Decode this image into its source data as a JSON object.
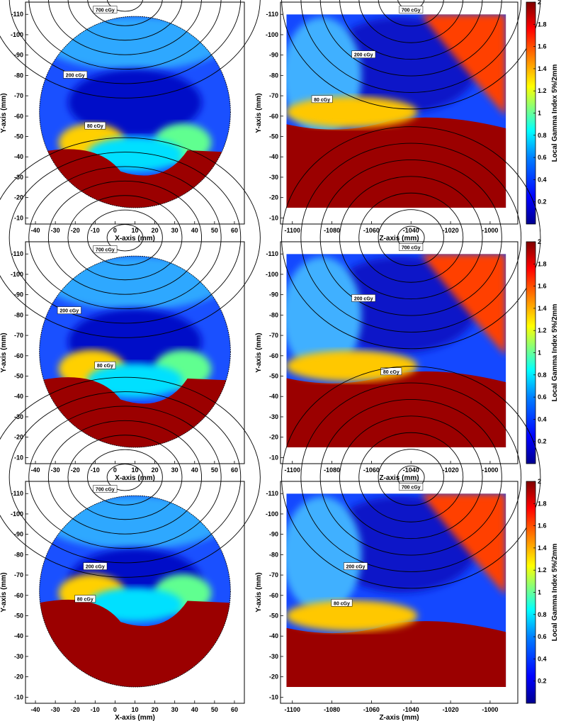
{
  "chart_data": [
    {
      "type": "heatmap",
      "id": "r1-left",
      "xlabel": "X-axis (mm)",
      "ylabel": "Y-axis (mm)",
      "xticks": [
        -40,
        -30,
        -20,
        -10,
        0,
        10,
        20,
        30,
        40,
        50,
        60
      ],
      "yticks": [
        -110,
        -100,
        -90,
        -80,
        -70,
        -60,
        -50,
        -40,
        -30,
        -20,
        -10
      ],
      "xlim": [
        -45,
        65
      ],
      "ylim": [
        -7,
        -116
      ],
      "y_reversed": true,
      "dose_labels": [
        {
          "text": "700 cGy",
          "x": -5,
          "y": -112
        },
        {
          "text": "200 cGy",
          "x": -20,
          "y": -80
        },
        {
          "text": "80 cGy",
          "x": -10,
          "y": -55
        }
      ]
    },
    {
      "type": "heatmap",
      "id": "r1-right",
      "xlabel": "Z-axis (mm)",
      "ylabel": "Y-axis (mm)",
      "xticks": [
        -1100,
        -1080,
        -1060,
        -1040,
        -1020,
        -1000
      ],
      "yticks": [
        -110,
        -100,
        -90,
        -80,
        -70,
        -60,
        -50,
        -40,
        -30,
        -20,
        -10
      ],
      "xlim": [
        -1106,
        -986
      ],
      "ylim": [
        -7,
        -116
      ],
      "y_reversed": true,
      "colorbar": {
        "label": "Local Gamma Index 5%/2mm",
        "range": [
          0,
          2
        ],
        "ticks": [
          0.2,
          0.4,
          0.6,
          0.8,
          1,
          1.2,
          1.4,
          1.6,
          1.8,
          2
        ]
      },
      "dose_labels": [
        {
          "text": "700 cGy",
          "x": -1040,
          "y": -112
        },
        {
          "text": "200 cGy",
          "x": -1064,
          "y": -90
        },
        {
          "text": "80 cGy",
          "x": -1085,
          "y": -68
        }
      ]
    },
    {
      "type": "heatmap",
      "id": "r2-left",
      "xlabel": "X-axis (mm)",
      "ylabel": "Y-axis (mm)",
      "xticks": [
        -40,
        -30,
        -20,
        -10,
        0,
        10,
        20,
        30,
        40,
        50,
        60
      ],
      "yticks": [
        -110,
        -100,
        -90,
        -80,
        -70,
        -60,
        -50,
        -40,
        -30,
        -20,
        -10
      ],
      "xlim": [
        -45,
        65
      ],
      "ylim": [
        -7,
        -116
      ],
      "y_reversed": true,
      "dose_labels": [
        {
          "text": "700 cGy",
          "x": -5,
          "y": -112
        },
        {
          "text": "200 cGy",
          "x": -23,
          "y": -82
        },
        {
          "text": "80 cGy",
          "x": -5,
          "y": -55
        }
      ]
    },
    {
      "type": "heatmap",
      "id": "r2-right",
      "xlabel": "Z-axis (mm)",
      "ylabel": "Y-axis (mm)",
      "xticks": [
        -1100,
        -1080,
        -1060,
        -1040,
        -1020,
        -1000
      ],
      "yticks": [
        -110,
        -100,
        -90,
        -80,
        -70,
        -60,
        -50,
        -40,
        -30,
        -20,
        -10
      ],
      "xlim": [
        -1106,
        -986
      ],
      "ylim": [
        -7,
        -116
      ],
      "y_reversed": true,
      "colorbar": {
        "label": "Local Gamma Index 5%/2mm",
        "range": [
          0,
          2
        ],
        "ticks": [
          0.2,
          0.4,
          0.6,
          0.8,
          1,
          1.2,
          1.4,
          1.6,
          1.8,
          2
        ]
      },
      "dose_labels": [
        {
          "text": "700 cGy",
          "x": -1040,
          "y": -113
        },
        {
          "text": "200 cGy",
          "x": -1064,
          "y": -88
        },
        {
          "text": "80 cGy",
          "x": -1050,
          "y": -52
        }
      ]
    },
    {
      "type": "heatmap",
      "id": "r3-left",
      "xlabel": "X-axis (mm)",
      "ylabel": "Y-axis (mm)",
      "xticks": [
        -40,
        -30,
        -20,
        -10,
        0,
        10,
        20,
        30,
        40,
        50,
        60
      ],
      "yticks": [
        -110,
        -100,
        -90,
        -80,
        -70,
        -60,
        -50,
        -40,
        -30,
        -20,
        -10
      ],
      "xlim": [
        -45,
        65
      ],
      "ylim": [
        -7,
        -116
      ],
      "y_reversed": true,
      "dose_labels": [
        {
          "text": "700 cGy",
          "x": -5,
          "y": -112
        },
        {
          "text": "200 cGy",
          "x": -10,
          "y": -74
        },
        {
          "text": "80 cGy",
          "x": -15,
          "y": -58
        }
      ]
    },
    {
      "type": "heatmap",
      "id": "r3-right",
      "xlabel": "Z-axis (mm)",
      "ylabel": "Y-axis (mm)",
      "xticks": [
        -1100,
        -1080,
        -1060,
        -1040,
        -1020,
        -1000
      ],
      "yticks": [
        -110,
        -100,
        -90,
        -80,
        -70,
        -60,
        -50,
        -40,
        -30,
        -20,
        -10
      ],
      "xlim": [
        -1106,
        -986
      ],
      "ylim": [
        -7,
        -116
      ],
      "y_reversed": true,
      "colorbar": {
        "label": "Local Gamma Index 5%/2mm",
        "range": [
          0,
          2
        ],
        "ticks": [
          0.2,
          0.4,
          0.6,
          0.8,
          1,
          1.2,
          1.4,
          1.6,
          1.8,
          2
        ]
      },
      "dose_labels": [
        {
          "text": "700 cGy",
          "x": -1040,
          "y": -113
        },
        {
          "text": "200 cGy",
          "x": -1068,
          "y": -74
        },
        {
          "text": "80 cGy",
          "x": -1075,
          "y": -56
        }
      ]
    }
  ],
  "colors": {
    "scale": [
      "#00008f",
      "#0000ff",
      "#0080ff",
      "#00ffff",
      "#80ff80",
      "#ffff00",
      "#ff8000",
      "#ff0000",
      "#800000"
    ],
    "fail_region": "#9b0000",
    "axis": "#000000",
    "background": "#ffffff"
  }
}
